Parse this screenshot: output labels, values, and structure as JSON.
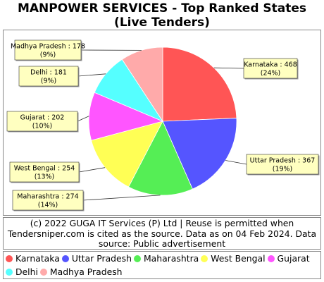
{
  "header": {
    "title_line1": "MANPOWER SERVICES - Top Ranked States",
    "title_line2": "(Live Tenders)"
  },
  "note": {
    "line1": "(c) 2022 GUGA IT Services (P) Ltd | Reuse is permitted when",
    "line2": "Tendersniper.com is cited as the source. Data as on 04 Feb 2024. Data",
    "line3": "source: Public advertisement"
  },
  "chart_data": {
    "type": "pie",
    "title": "MANPOWER SERVICES - Top Ranked States (Live Tenders)",
    "categories": [
      "Karnataka",
      "Uttar Pradesh",
      "Maharashtra",
      "West Bengal",
      "Gujarat",
      "Delhi",
      "Madhya Pradesh"
    ],
    "values": [
      468,
      367,
      274,
      254,
      202,
      181,
      178
    ],
    "percent_labels": [
      "24%",
      "19%",
      "14%",
      "13%",
      "10%",
      "9%",
      "9%"
    ],
    "colors": [
      "#ff5555",
      "#5555ff",
      "#55ee55",
      "#ffff55",
      "#ff55ff",
      "#55ffff",
      "#ffaaaa"
    ],
    "legend_position": "bottom"
  }
}
